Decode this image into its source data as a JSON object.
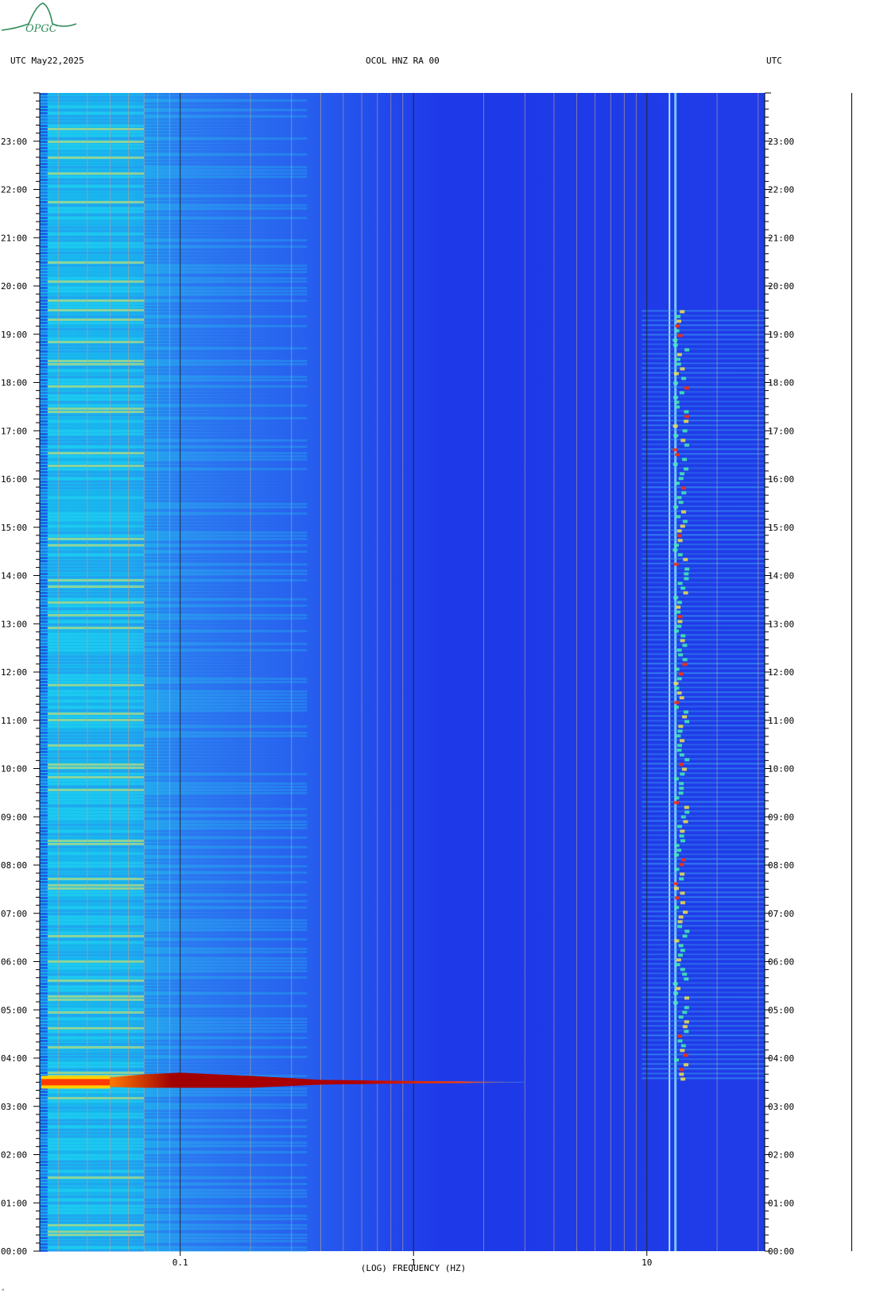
{
  "header": {
    "left": "UTC  May22,2025",
    "center": "OCOL HNZ RA 00",
    "right": "UTC"
  },
  "logo": {
    "text": "OPGC",
    "color": "#2e8b57"
  },
  "corner_mark": "ᴹ",
  "chart_data": {
    "type": "heatmap",
    "title": "OCOL HNZ RA 00",
    "xlabel": "(LOG) FREQUENCY (HZ)",
    "ylabel": "UTC",
    "x_scale": "log",
    "xlim": [
      0.025,
      32
    ],
    "ylim_hours": [
      0,
      24
    ],
    "x_ticks": [
      {
        "value": 0.1,
        "label": "0.1"
      },
      {
        "value": 1,
        "label": "1"
      },
      {
        "value": 10,
        "label": "10"
      }
    ],
    "y_ticks": [
      "00:00",
      "01:00",
      "02:00",
      "03:00",
      "04:00",
      "05:00",
      "06:00",
      "07:00",
      "08:00",
      "09:00",
      "10:00",
      "11:00",
      "12:00",
      "13:00",
      "14:00",
      "15:00",
      "16:00",
      "17:00",
      "18:00",
      "19:00",
      "20:00",
      "21:00",
      "22:00",
      "23:00"
    ],
    "colors": {
      "background": "#1e3cf0",
      "low_freq_band": "#18c8f0",
      "mid_band": "#2f7cf0",
      "yellow": "#e8e85a",
      "event_core": "#9a0000",
      "event_edge": "#ff6a00",
      "grid_line": "#c9a08c",
      "grid_line_decade": "#222222"
    },
    "event": {
      "description_time_utc": "03:30",
      "time_hours": 3.5,
      "freq_range_hz": [
        0.025,
        3
      ]
    },
    "noise_band": {
      "freq_range_hz": [
        12.5,
        15
      ],
      "active_hours": [
        3.5,
        19.5
      ]
    }
  }
}
